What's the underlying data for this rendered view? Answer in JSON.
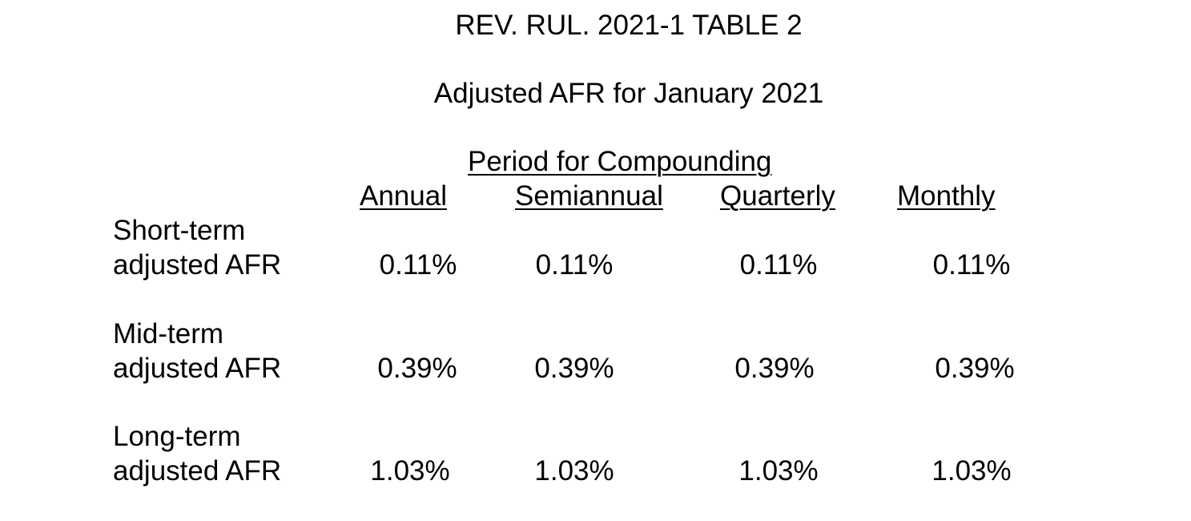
{
  "document": {
    "title": "REV. RUL. 2021-1 TABLE 2",
    "subtitle": "Adjusted AFR for January 2021"
  },
  "table": {
    "group_header": "Period for Compounding",
    "columns": [
      "Annual",
      "Semiannual",
      "Quarterly",
      "Monthly"
    ],
    "rows": [
      {
        "label_line1": "Short-term",
        "label_line2": "adjusted AFR",
        "values": [
          "0.11%",
          "0.11%",
          "0.11%",
          "0.11%"
        ]
      },
      {
        "label_line1": "Mid-term",
        "label_line2": "adjusted AFR",
        "values": [
          "0.39%",
          "0.39%",
          "0.39%",
          "0.39%"
        ]
      },
      {
        "label_line1": "Long-term",
        "label_line2": "adjusted AFR",
        "values": [
          "1.03%",
          "1.03%",
          "1.03%",
          "1.03%"
        ]
      }
    ]
  }
}
